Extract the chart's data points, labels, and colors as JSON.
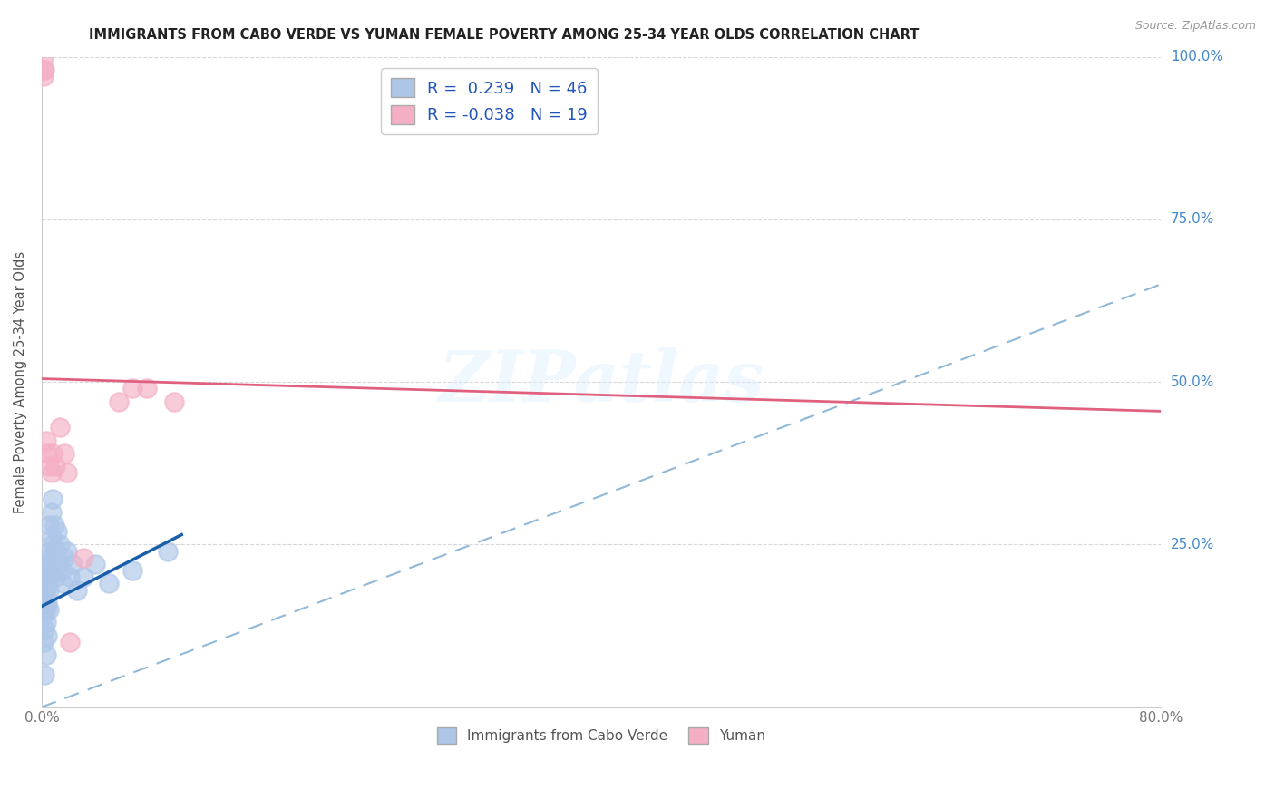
{
  "title": "IMMIGRANTS FROM CABO VERDE VS YUMAN FEMALE POVERTY AMONG 25-34 YEAR OLDS CORRELATION CHART",
  "source": "Source: ZipAtlas.com",
  "ylabel": "Female Poverty Among 25-34 Year Olds",
  "xlim": [
    0.0,
    0.8
  ],
  "ylim": [
    0.0,
    1.0
  ],
  "x_ticks": [
    0.0,
    0.1,
    0.2,
    0.3,
    0.4,
    0.5,
    0.6,
    0.7,
    0.8
  ],
  "y_ticks": [
    0.0,
    0.25,
    0.5,
    0.75,
    1.0
  ],
  "y_tick_labels": [
    "",
    "25.0%",
    "50.0%",
    "75.0%",
    "100.0%"
  ],
  "blue_R": 0.239,
  "blue_N": 46,
  "pink_R": -0.038,
  "pink_N": 19,
  "blue_color": "#adc6e8",
  "pink_color": "#f4afc4",
  "blue_line_color": "#1a5faa",
  "pink_line_color": "#e06080",
  "dashed_line_color": "#90b8d8",
  "watermark": "ZIPatlas",
  "blue_line_x0": 0.0,
  "blue_line_y0": 0.155,
  "blue_line_x1": 0.1,
  "blue_line_y1": 0.265,
  "pink_line_x0": 0.0,
  "pink_line_y0": 0.505,
  "pink_line_x1": 0.8,
  "pink_line_y1": 0.455,
  "dashed_line_x0": 0.0,
  "dashed_line_y0": 0.0,
  "dashed_line_x1": 0.8,
  "dashed_line_y1": 0.65,
  "blue_scatter_x": [
    0.001,
    0.001,
    0.001,
    0.002,
    0.002,
    0.002,
    0.002,
    0.003,
    0.003,
    0.003,
    0.003,
    0.003,
    0.004,
    0.004,
    0.004,
    0.004,
    0.005,
    0.005,
    0.005,
    0.005,
    0.005,
    0.006,
    0.006,
    0.007,
    0.007,
    0.007,
    0.008,
    0.008,
    0.009,
    0.01,
    0.01,
    0.011,
    0.012,
    0.013,
    0.014,
    0.015,
    0.016,
    0.018,
    0.02,
    0.022,
    0.025,
    0.03,
    0.038,
    0.048,
    0.065,
    0.09
  ],
  "blue_scatter_y": [
    0.17,
    0.14,
    0.1,
    0.18,
    0.16,
    0.12,
    0.05,
    0.2,
    0.18,
    0.15,
    0.13,
    0.08,
    0.22,
    0.19,
    0.16,
    0.11,
    0.24,
    0.21,
    0.18,
    0.15,
    0.28,
    0.23,
    0.2,
    0.3,
    0.26,
    0.22,
    0.32,
    0.25,
    0.28,
    0.24,
    0.2,
    0.27,
    0.22,
    0.25,
    0.21,
    0.19,
    0.23,
    0.24,
    0.2,
    0.22,
    0.18,
    0.2,
    0.22,
    0.19,
    0.21,
    0.24
  ],
  "pink_scatter_x": [
    0.001,
    0.001,
    0.001,
    0.002,
    0.003,
    0.004,
    0.005,
    0.007,
    0.008,
    0.01,
    0.013,
    0.016,
    0.018,
    0.02,
    0.03,
    0.055,
    0.065,
    0.075,
    0.095
  ],
  "pink_scatter_y": [
    1.0,
    0.98,
    0.97,
    0.98,
    0.41,
    0.39,
    0.37,
    0.36,
    0.39,
    0.37,
    0.43,
    0.39,
    0.36,
    0.1,
    0.23,
    0.47,
    0.49,
    0.49,
    0.47
  ]
}
